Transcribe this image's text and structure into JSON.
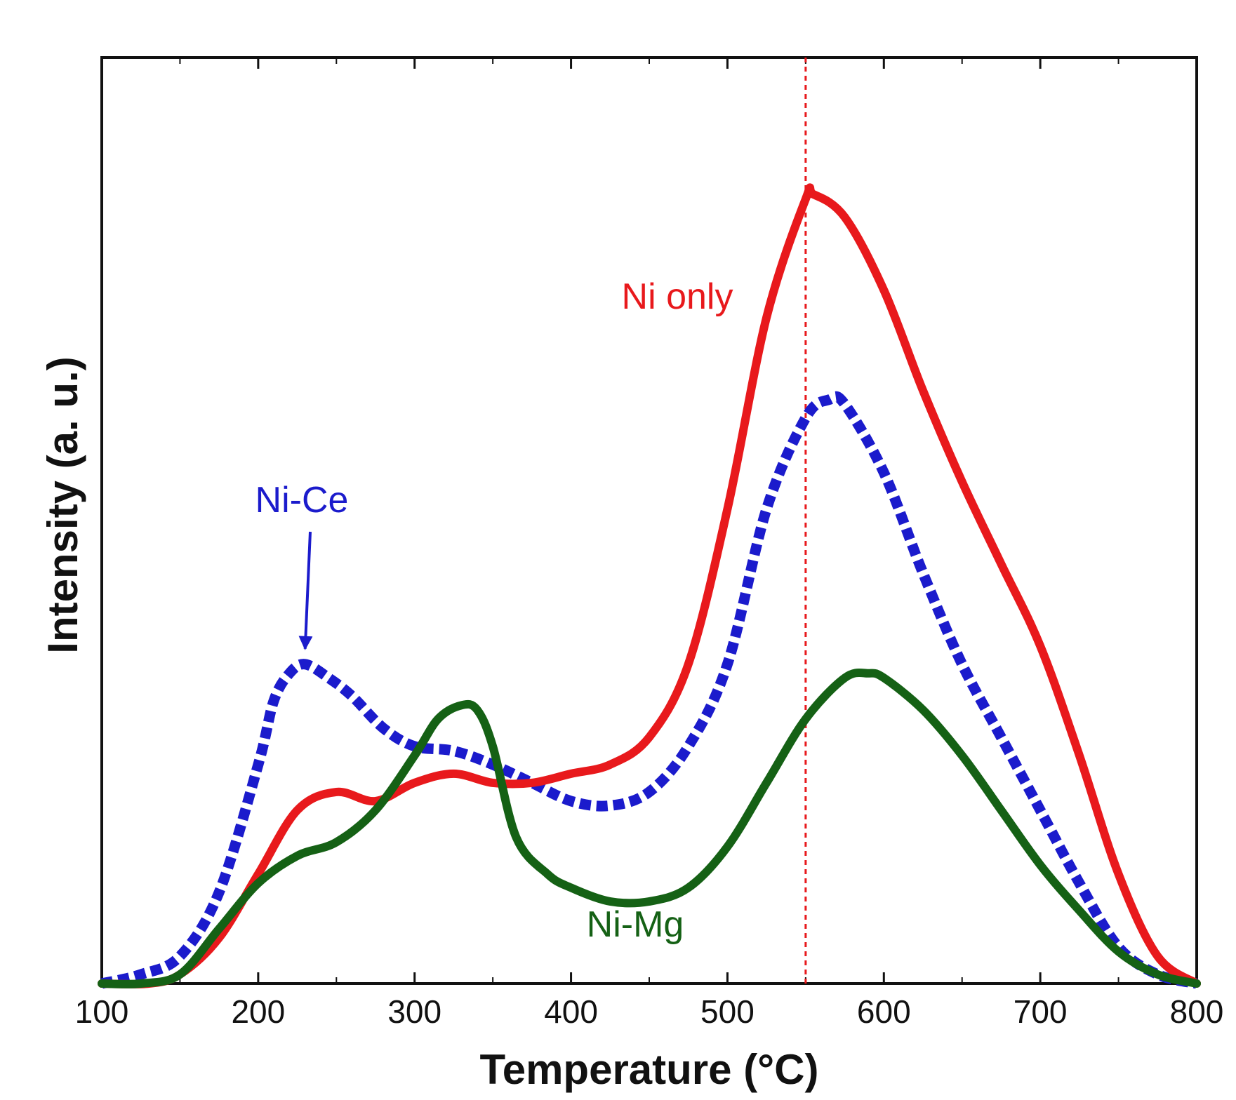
{
  "chart_data": {
    "type": "line",
    "title": "",
    "xlabel": "Temperature (°C)",
    "ylabel": "Intensity (a. u.)",
    "xlim": [
      100,
      800
    ],
    "ylim": [
      0,
      100
    ],
    "x_ticks": [
      "100",
      "200",
      "300",
      "400",
      "500",
      "600",
      "700",
      "800"
    ],
    "grid": false,
    "legend": "none",
    "reference_line": {
      "x": 550,
      "color": "#e8191c",
      "style": "dotted"
    },
    "series": [
      {
        "name": "Ni only",
        "label": "Ni only",
        "color": "#e8191c",
        "style": "solid",
        "x": [
          100,
          130,
          150,
          175,
          200,
          225,
          250,
          275,
          300,
          325,
          350,
          375,
          400,
          425,
          450,
          475,
          500,
          525,
          550,
          555,
          575,
          600,
          625,
          650,
          675,
          700,
          725,
          750,
          775,
          800
        ],
        "y": [
          0,
          0,
          1,
          5,
          12,
          19,
          21,
          20,
          22,
          23,
          22,
          22,
          23,
          24,
          27,
          35,
          52,
          73,
          86,
          86.5,
          84,
          76,
          65,
          55,
          46,
          37,
          25,
          12,
          3,
          0
        ]
      },
      {
        "name": "Ni-Ce",
        "label": "Ni-Ce",
        "color": "#1b1bcc",
        "style": "dashed",
        "x": [
          100,
          125,
          150,
          175,
          200,
          210,
          220,
          230,
          245,
          260,
          280,
          300,
          325,
          350,
          375,
          400,
          425,
          450,
          475,
          500,
          525,
          550,
          565,
          575,
          600,
          625,
          650,
          675,
          700,
          725,
          750,
          775,
          800
        ],
        "y": [
          0,
          1,
          3,
          10,
          24,
          31,
          34,
          35,
          33.5,
          31.5,
          28,
          26,
          25.5,
          24,
          22,
          20,
          19.5,
          21,
          26,
          35,
          52,
          62,
          64,
          63.5,
          56,
          45,
          35,
          27,
          19,
          11,
          4,
          1,
          0
        ]
      },
      {
        "name": "Ni-Mg",
        "label": "Ni-Mg",
        "color": "#156115",
        "style": "solid",
        "x": [
          100,
          125,
          150,
          175,
          200,
          225,
          250,
          275,
          300,
          315,
          330,
          340,
          350,
          365,
          385,
          400,
          425,
          450,
          475,
          500,
          525,
          550,
          575,
          590,
          600,
          625,
          650,
          675,
          700,
          725,
          750,
          775,
          800
        ],
        "y": [
          0,
          0,
          1,
          6,
          11,
          14,
          15.5,
          19,
          25,
          29,
          30.5,
          30,
          26,
          16,
          12,
          10.5,
          9,
          9,
          10.5,
          15,
          22,
          29,
          33.5,
          34,
          33.5,
          30,
          25,
          19,
          13,
          8,
          3.5,
          1,
          0
        ]
      }
    ],
    "annotations": [
      {
        "text": "Ni only",
        "target_series": "Ni only"
      },
      {
        "text": "Ni-Ce",
        "target_series": "Ni-Ce",
        "arrow_to": {
          "x": 230,
          "y": 35
        }
      },
      {
        "text": "Ni-Mg",
        "target_series": "Ni-Mg"
      }
    ]
  }
}
